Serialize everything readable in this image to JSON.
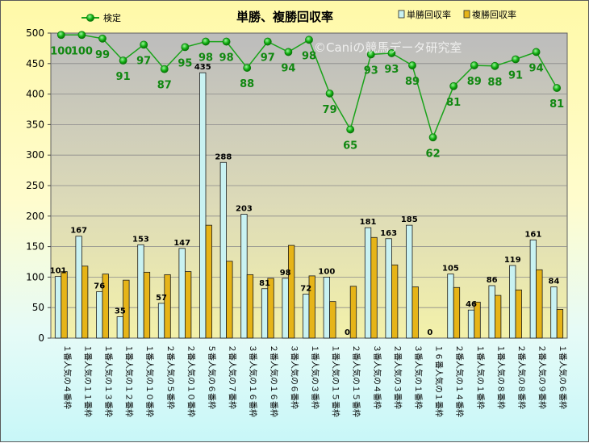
{
  "chart_data": {
    "type": "bar",
    "title": "単勝、複勝回収率",
    "watermark": "©Caniの競馬データ研究室",
    "ylim": [
      0,
      500
    ],
    "yticks": [
      "0",
      "50",
      "100",
      "150",
      "200",
      "250",
      "300",
      "350",
      "400",
      "450",
      "500"
    ],
    "grid": true,
    "legend_placement": "top",
    "categories": [
      "１番人気の４番枠",
      "１番人気の１１番枠",
      "１番人気の１３番枠",
      "１番人気の１２番枠",
      "１番人気の１０番枠",
      "２番人気の５番枠",
      "２番人気の１０番枠",
      "５番人気の６番枠",
      "２番人気の７番枠",
      "３番人気の１６番枠",
      "２番人気の１６番枠",
      "３番人気の６番枠",
      "１番人気の３番枠",
      "１番人気の１５番枠",
      "２番人気の１５番枠",
      "３番人気の４番枠",
      "２番人気の３番枠",
      "３番人気の１番枠",
      "１６番人気の１番枠",
      "２番人気の１４番枠",
      "１番人気の１番枠",
      "１番人気の８番枠",
      "２番人気の８番枠",
      "２番人気の９番枠",
      "１番人気の６番枠"
    ],
    "series": [
      {
        "name": "単勝回収率",
        "kind": "bar",
        "color": "#c9f2f2",
        "values": [
          101,
          167,
          76,
          35,
          153,
          57,
          147,
          435,
          288,
          203,
          81,
          98,
          72,
          100,
          0,
          181,
          163,
          185,
          0,
          105,
          46,
          86,
          119,
          161,
          84
        ],
        "labels": [
          "101",
          "167",
          "76",
          "35",
          "153",
          "57",
          "147",
          "435",
          "288",
          "203",
          "81",
          "98",
          "72",
          "100",
          "0",
          "181",
          "163",
          "185",
          "0",
          "105",
          "46",
          "86",
          "119",
          "161",
          "84"
        ]
      },
      {
        "name": "複勝回収率",
        "kind": "bar",
        "color": "#e6b418",
        "values": [
          109,
          118,
          105,
          95,
          108,
          104,
          109,
          185,
          126,
          104,
          98,
          152,
          102,
          60,
          85,
          165,
          120,
          84,
          0,
          83,
          59,
          70,
          79,
          112,
          47
        ]
      },
      {
        "name": "検定",
        "kind": "line",
        "color": "#1aa31a",
        "values": [
          497,
          497,
          491,
          455,
          481,
          441,
          477,
          486,
          486,
          443,
          486,
          469,
          489,
          401,
          342,
          465,
          467,
          447,
          329,
          413,
          447,
          446,
          457,
          469,
          410
        ],
        "labels": [
          "100",
          "100",
          "99",
          "91",
          "97",
          "87",
          "95",
          "98",
          "98",
          "88",
          "97",
          "94",
          "98",
          "79",
          "65",
          "93",
          "93",
          "89",
          "62",
          "81",
          "89",
          "88",
          "91",
          "94",
          "81"
        ]
      }
    ]
  }
}
